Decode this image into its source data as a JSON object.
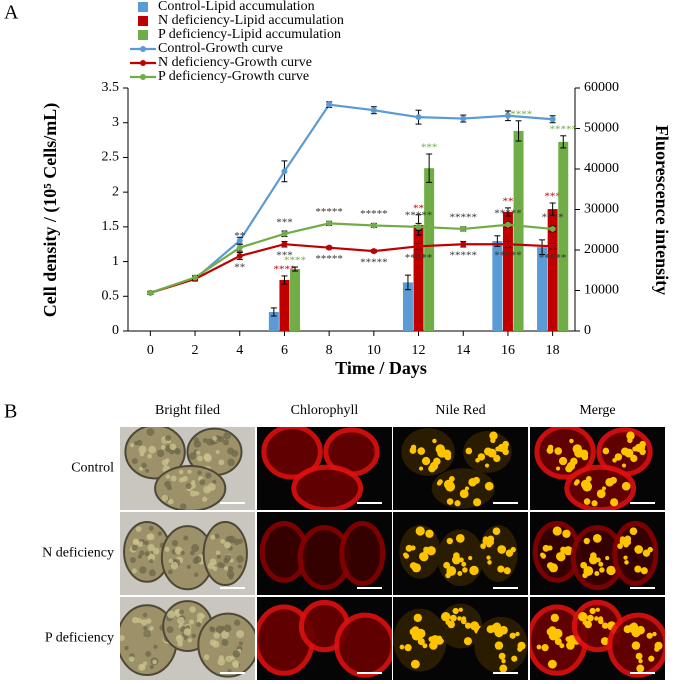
{
  "chart_data": {
    "type": "combo",
    "panel": "A",
    "x": [
      0,
      2,
      4,
      6,
      8,
      10,
      12,
      14,
      16,
      18
    ],
    "xlim": [
      -1,
      19
    ],
    "xticks": [
      0,
      2,
      4,
      6,
      8,
      10,
      12,
      14,
      16,
      18
    ],
    "ylim": [
      0,
      3.5
    ],
    "yticks": [
      0,
      0.5,
      1,
      1.5,
      2,
      2.5,
      3,
      3.5
    ],
    "y2lim": [
      0,
      60000
    ],
    "y2ticks": [
      0,
      10000,
      20000,
      30000,
      40000,
      50000,
      60000
    ],
    "xlabel": "Time / Days",
    "ylabel": "Cell density / (10⁵ Cells/mL)",
    "y2label": "Fluorescence intensity",
    "legend": "top-left",
    "series": [
      {
        "name": "Control-Lipid accumulation",
        "type": "bar",
        "axis": "y2",
        "color": "#5B9BD5",
        "values": [
          null,
          null,
          null,
          4700,
          null,
          null,
          12000,
          null,
          22200,
          20700
        ],
        "errors": [
          null,
          null,
          null,
          1000,
          null,
          null,
          1800,
          null,
          1300,
          1800
        ]
      },
      {
        "name": "N deficiency-Lipid accumulation",
        "type": "bar",
        "axis": "y2",
        "color": "#C00000",
        "values": [
          null,
          null,
          null,
          12600,
          null,
          null,
          26200,
          null,
          29400,
          30100
        ],
        "errors": [
          null,
          null,
          null,
          1000,
          null,
          null,
          2500,
          null,
          1000,
          1500
        ],
        "stars": [
          null,
          null,
          null,
          "****",
          null,
          null,
          "**",
          null,
          "**",
          "***"
        ],
        "star_color": "#C00000"
      },
      {
        "name": "P deficiency-Lipid accumulation",
        "type": "bar",
        "axis": "y2",
        "color": "#70AD47",
        "values": [
          null,
          null,
          null,
          15300,
          null,
          null,
          40200,
          null,
          49400,
          46700
        ],
        "errors": [
          null,
          null,
          null,
          500,
          null,
          null,
          3500,
          null,
          2500,
          1500
        ],
        "stars": [
          null,
          null,
          null,
          "****",
          null,
          null,
          "***",
          null,
          "*****",
          "*****"
        ],
        "star_color": "#70AD47"
      },
      {
        "name": "Control-Growth curve",
        "type": "line",
        "color": "#5B9BD5",
        "values": [
          0.55,
          0.75,
          1.3,
          2.3,
          3.26,
          3.18,
          3.08,
          3.06,
          3.1,
          3.05
        ],
        "errors": [
          0.02,
          0.03,
          0.05,
          0.15,
          0.04,
          0.05,
          0.1,
          0.05,
          0.07,
          0.05
        ]
      },
      {
        "name": "N deficiency-Growth curve",
        "type": "line",
        "color": "#C00000",
        "values": [
          0.55,
          0.75,
          1.08,
          1.25,
          1.2,
          1.15,
          1.22,
          1.25,
          1.25,
          1.22
        ],
        "errors": [
          0.02,
          0.03,
          0.05,
          0.04,
          0.02,
          0.02,
          0.04,
          0.04,
          0.04,
          0.04
        ],
        "stars": [
          null,
          null,
          "**",
          "***",
          "*****",
          "*****",
          "*****",
          "*****",
          "*****",
          "*****"
        ],
        "star_color": "#333333",
        "star_side": "below"
      },
      {
        "name": "P deficiency-Growth curve",
        "type": "line",
        "color": "#70AD47",
        "values": [
          0.55,
          0.77,
          1.2,
          1.4,
          1.55,
          1.52,
          1.5,
          1.47,
          1.53,
          1.47
        ],
        "errors": [
          0.02,
          0.03,
          0.05,
          0.04,
          0.03,
          0.03,
          0.05,
          0.03,
          0.04,
          0.04
        ],
        "stars": [
          null,
          null,
          "**",
          "***",
          "*****",
          "*****",
          "*****",
          "*****",
          "*****",
          "****"
        ],
        "star_color": "#333333",
        "star_side": "above"
      }
    ]
  },
  "micrographs": {
    "panel": "B",
    "columns": [
      "Bright filed",
      "Chlorophyll",
      "Nile Red",
      "Merge"
    ],
    "rows": [
      "Control",
      "N deficiency",
      "P deficiency"
    ]
  }
}
